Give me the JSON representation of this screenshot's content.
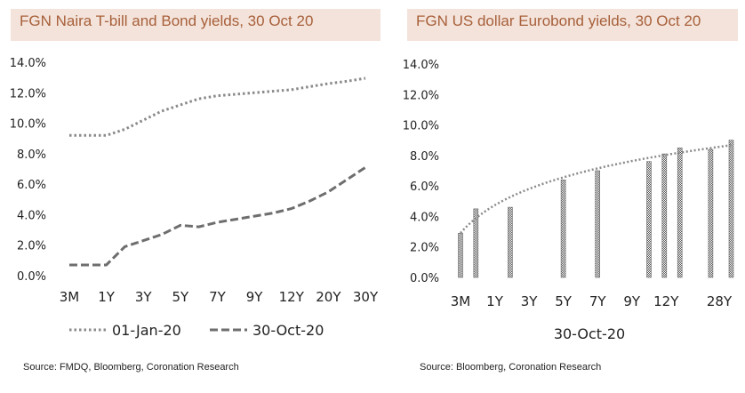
{
  "colors": {
    "title_bg": "#f3e3db",
    "title_text": "#a8603a",
    "series": "#8a8a8a",
    "dashed": "#6e6e6e"
  },
  "chart_data": [
    {
      "type": "line",
      "title": "FGN Naira T-bill and Bond yields, 30 Oct 20",
      "source": "Source: FMDQ, Bloomberg, Coronation Research",
      "ylim": [
        0,
        14
      ],
      "yticks": [
        "0.0%",
        "2.0%",
        "4.0%",
        "6.0%",
        "8.0%",
        "10.0%",
        "12.0%",
        "14.0%"
      ],
      "ytick_values": [
        0,
        2,
        4,
        6,
        8,
        10,
        12,
        14
      ],
      "x_tick_labels": [
        "3M",
        "1Y",
        "3Y",
        "5Y",
        "7Y",
        "9Y",
        "12Y",
        "20Y",
        "30Y"
      ],
      "x_tick_positions": [
        0,
        1,
        2,
        3,
        4,
        5,
        6,
        7,
        8
      ],
      "series": [
        {
          "name": "01-Jan-20",
          "style": "dotted",
          "x": [
            0,
            0.5,
            1,
            1.5,
            2,
            2.5,
            3,
            3.5,
            4,
            4.5,
            5,
            5.5,
            6,
            6.5,
            7,
            7.5,
            8
          ],
          "values": [
            9.2,
            9.2,
            9.2,
            9.6,
            10.2,
            10.8,
            11.2,
            11.6,
            11.8,
            11.9,
            12.0,
            12.1,
            12.2,
            12.4,
            12.6,
            12.75,
            12.95
          ]
        },
        {
          "name": "30-Oct-20",
          "style": "dashed",
          "x": [
            0,
            0.5,
            1,
            1.5,
            2,
            2.5,
            3,
            3.5,
            4,
            4.5,
            5,
            5.5,
            6,
            6.5,
            7,
            7.5,
            8
          ],
          "values": [
            0.7,
            0.7,
            0.7,
            1.9,
            2.3,
            2.7,
            3.3,
            3.2,
            3.5,
            3.7,
            3.9,
            4.1,
            4.4,
            4.9,
            5.5,
            6.3,
            7.1
          ]
        }
      ],
      "legend": [
        "01-Jan-20",
        "30-Oct-20"
      ],
      "legend_position": "bottom"
    },
    {
      "type": "bar",
      "title": "FGN US dollar Eurobond yields, 30 Oct 20",
      "source": "Source: Bloomberg, Coronation Research",
      "xlabel": "30-Oct-20",
      "ylim": [
        0,
        14
      ],
      "yticks": [
        "0.0%",
        "2.0%",
        "4.0%",
        "6.0%",
        "8.0%",
        "10.0%",
        "12.0%",
        "14.0%"
      ],
      "ytick_values": [
        0,
        2,
        4,
        6,
        8,
        10,
        12,
        14
      ],
      "x_tick_labels": [
        "3M",
        "1Y",
        "3Y",
        "5Y",
        "7Y",
        "9Y",
        "12Y",
        "28Y"
      ],
      "x_tick_positions": [
        0,
        1,
        2,
        3,
        4,
        5,
        6,
        7.55
      ],
      "x_range": [
        -0.3,
        7.95
      ],
      "bars_x": [
        0,
        0.45,
        1.45,
        3,
        4,
        5.5,
        5.95,
        6.4,
        7.3,
        7.9
      ],
      "bars_values": [
        2.9,
        4.5,
        4.6,
        6.4,
        7.0,
        7.6,
        8.1,
        8.5,
        8.4,
        9.0
      ],
      "trendline_style": "dotted"
    }
  ]
}
